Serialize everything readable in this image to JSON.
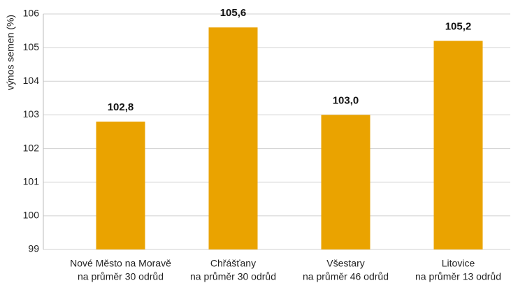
{
  "chart_data": {
    "type": "bar",
    "y_label": "výnos semen (%)",
    "categories": [
      [
        "Nové Město na Moravě",
        "na průměr 30 odrůd"
      ],
      [
        "Chřášťany",
        "na průměr 30 odrůd"
      ],
      [
        "Všestary",
        "na průměr 46 odrůd"
      ],
      [
        "Litovice",
        "na průměr 13 odrůd"
      ]
    ],
    "values": [
      102.8,
      105.6,
      103.0,
      105.2
    ],
    "value_labels": [
      "102,8",
      "105,6",
      "103,0",
      "105,2"
    ],
    "color": "#eaa300",
    "ylim": [
      99,
      106
    ],
    "yticks": [
      99,
      100,
      101,
      102,
      103,
      104,
      105,
      106
    ],
    "grid": true
  }
}
